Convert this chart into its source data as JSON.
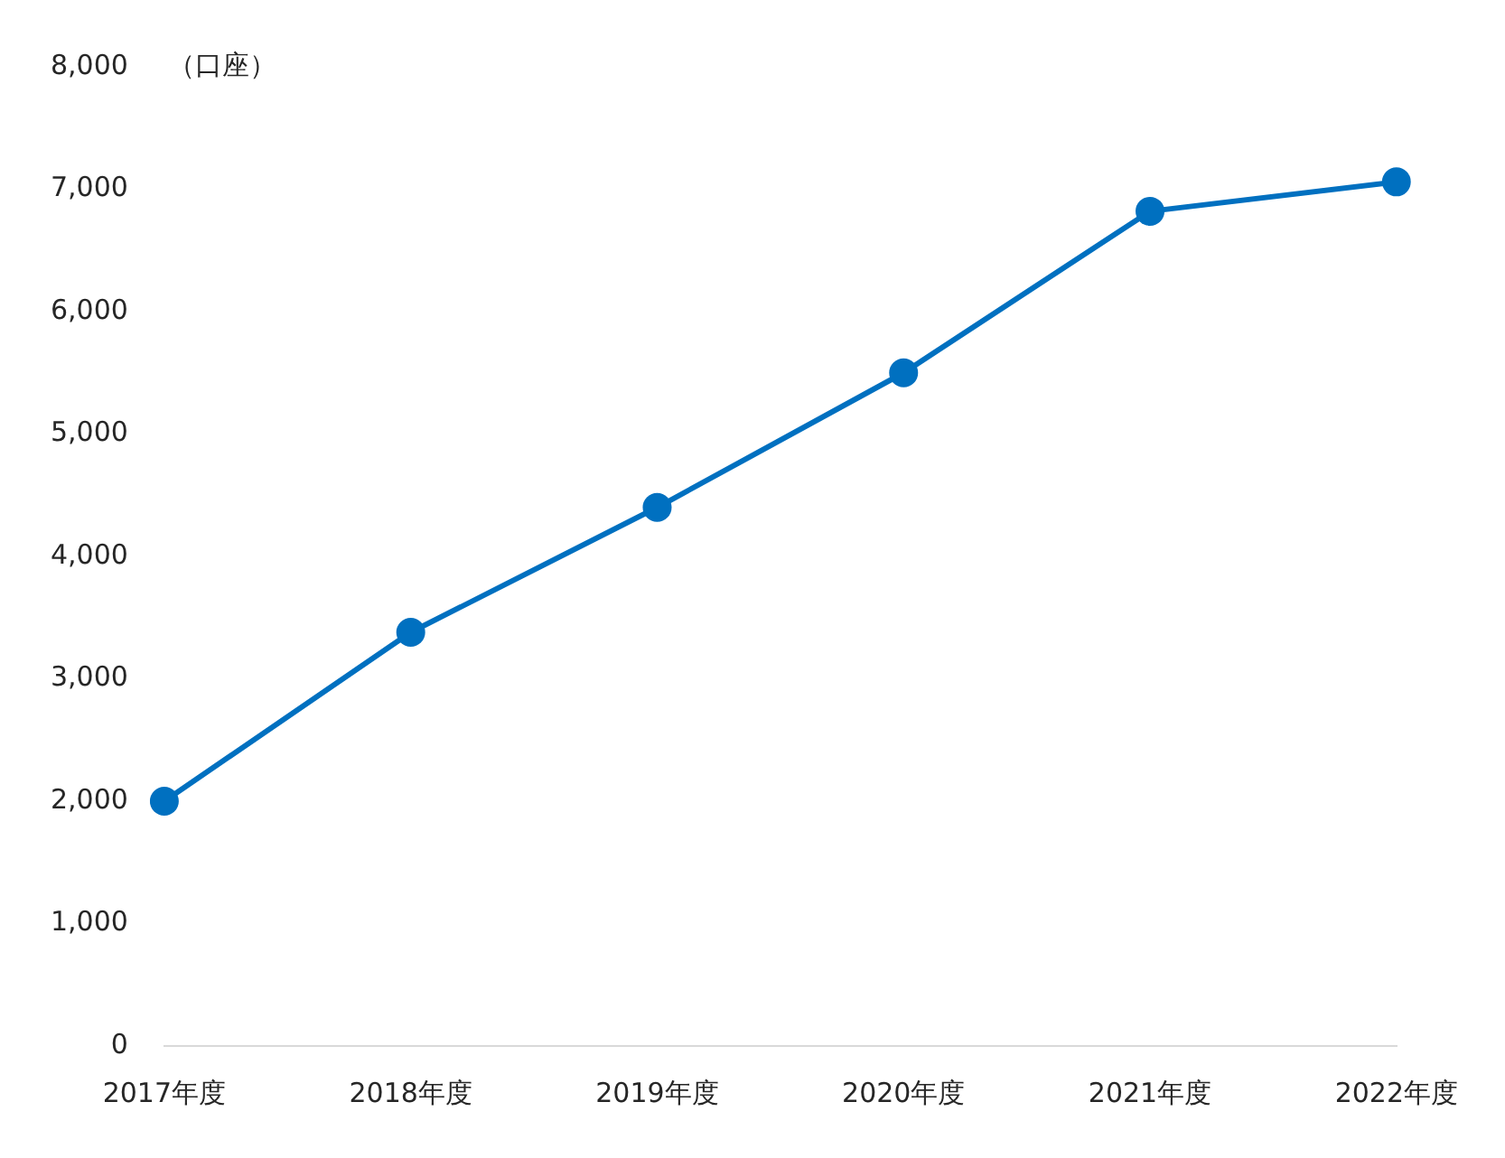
{
  "chart_data": {
    "type": "line",
    "ylabel": "（口座）",
    "categories": [
      "2017年度",
      "2018年度",
      "2019年度",
      "2020年度",
      "2021年度",
      "2022年度"
    ],
    "series": [
      {
        "color": "#0070c0",
        "values": [
          2000,
          3380,
          4400,
          5500,
          6820,
          7060
        ]
      }
    ],
    "ylim": [
      0,
      8000
    ],
    "yticks": [
      {
        "value": 0,
        "label": "0"
      },
      {
        "value": 1000,
        "label": "1,000"
      },
      {
        "value": 2000,
        "label": "2,000"
      },
      {
        "value": 3000,
        "label": "3,000"
      },
      {
        "value": 4000,
        "label": "4,000"
      },
      {
        "value": 5000,
        "label": "5,000"
      },
      {
        "value": 6000,
        "label": "6,000"
      },
      {
        "value": 7000,
        "label": "7,000"
      },
      {
        "value": 8000,
        "label": "8,000"
      }
    ],
    "grid": false,
    "legend": false,
    "marker": "circle",
    "line_style": "solid"
  }
}
